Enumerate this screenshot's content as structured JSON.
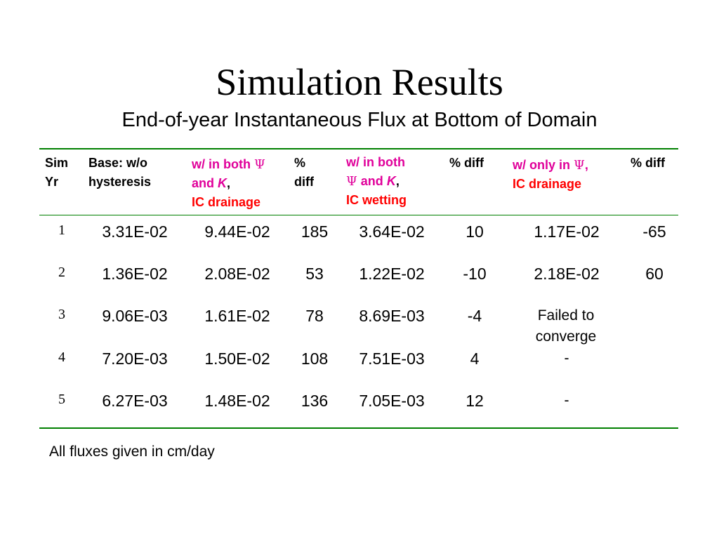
{
  "title": "Simulation Results",
  "subtitle": "End-of-year Instantaneous Flux at Bottom of Domain",
  "headers": {
    "sim_yr": [
      "Sim",
      "Yr"
    ],
    "base": [
      "Base: w/o",
      "hysteresis"
    ],
    "both_drainage": {
      "l1": "w/ in both ",
      "psi": "Ψ",
      "l2a": "and ",
      "k": "K",
      "l2b": ",",
      "l3": "IC drainage"
    },
    "pct_diff_1": [
      "%",
      "diff"
    ],
    "both_wetting": {
      "l1": "w/ in both",
      "psi": "Ψ",
      "l2a": " and ",
      "k": "K",
      "l2b": ",",
      "l3": "IC wetting"
    },
    "pct_diff_2": "% diff",
    "only_psi": {
      "l1a": "w/ only in ",
      "psi": "Ψ",
      "l1b": ",",
      "l2": "IC drainage"
    },
    "pct_diff_3": "% diff"
  },
  "rows": [
    {
      "yr": "1",
      "base": "3.31E-02",
      "both_drain": "9.44E-02",
      "diff1": "185",
      "both_wet": "3.64E-02",
      "diff2": "10",
      "only_psi": "1.17E-02",
      "diff3": "-65"
    },
    {
      "yr": "2",
      "base": "1.36E-02",
      "both_drain": "2.08E-02",
      "diff1": "53",
      "both_wet": "1.22E-02",
      "diff2": "-10",
      "only_psi": "2.18E-02",
      "diff3": "60"
    },
    {
      "yr": "3",
      "base": "9.06E-03",
      "both_drain": "1.61E-02",
      "diff1": "78",
      "both_wet": "8.69E-03",
      "diff2": "-4",
      "only_psi": "Failed to converge",
      "diff3": ""
    },
    {
      "yr": "4",
      "base": "7.20E-03",
      "both_drain": "1.50E-02",
      "diff1": "108",
      "both_wet": "7.51E-03",
      "diff2": "4",
      "only_psi": "-",
      "diff3": ""
    },
    {
      "yr": "5",
      "base": "6.27E-03",
      "both_drain": "1.48E-02",
      "diff1": "136",
      "both_wet": "7.05E-03",
      "diff2": "12",
      "only_psi": "-",
      "diff3": ""
    }
  ],
  "footnote": "All fluxes given in cm/day",
  "colors": {
    "rule": "#008000",
    "magenta": "#e0009a",
    "red": "#ff0000"
  }
}
